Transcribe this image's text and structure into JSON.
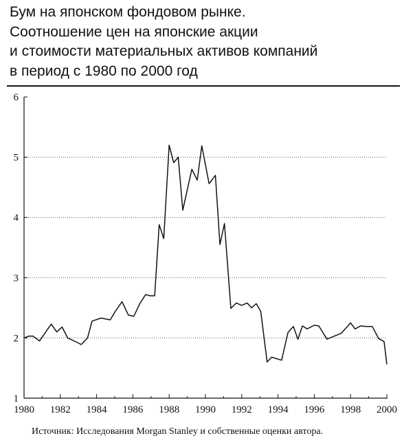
{
  "title_lines": [
    "Бум на японском фондовом рынке.",
    "Соотношение цен на японские акции",
    "и стоимости материальных активов компаний",
    "в период с 1980 по 2000 год"
  ],
  "source": "Источник: Исследования Morgan Stanley и собственные оценки автора.",
  "chart_data": {
    "type": "line",
    "title": "",
    "xlabel": "",
    "ylabel": "",
    "xlim": [
      1980,
      2000
    ],
    "ylim": [
      1,
      6
    ],
    "grid": "horizontal dotted",
    "xticks": [
      1980,
      1982,
      1984,
      1986,
      1988,
      1990,
      1992,
      1994,
      1996,
      1998,
      2000
    ],
    "xtick_labels": [
      "1980",
      "1982",
      "1984",
      "1986",
      "1988",
      "1990",
      "1992",
      "1994",
      "1996",
      "1998",
      "2000"
    ],
    "yticks": [
      1,
      2,
      3,
      4,
      5,
      6
    ],
    "ytick_labels": [
      "1",
      "2",
      "3",
      "4",
      "5",
      "6"
    ],
    "series": [
      {
        "x": [
          1980.0,
          1980.25,
          1980.5,
          1980.85,
          1981.2,
          1981.5,
          1981.8,
          1982.1,
          1982.4,
          1982.9,
          1983.15,
          1983.5,
          1983.75,
          1984.25,
          1984.75,
          1985.05,
          1985.4,
          1985.75,
          1986.05,
          1986.4,
          1986.7,
          1986.95,
          1987.2,
          1987.45,
          1987.7,
          1988.0,
          1988.25,
          1988.5,
          1988.75,
          1989.25,
          1989.55,
          1989.8,
          1990.2,
          1990.55,
          1990.8,
          1991.05,
          1991.4,
          1991.7,
          1992.0,
          1992.3,
          1992.55,
          1992.8,
          1993.05,
          1993.4,
          1993.65,
          1994.2,
          1994.55,
          1994.85,
          1995.1,
          1995.35,
          1995.6,
          1996.0,
          1996.25,
          1996.7,
          1997.5,
          1998.0,
          1998.25,
          1998.55,
          1998.85,
          1999.2,
          1999.55,
          1999.85,
          2000.0
        ],
        "y": [
          2.0,
          2.03,
          2.03,
          1.95,
          2.1,
          2.23,
          2.1,
          2.18,
          2.0,
          1.93,
          1.89,
          2.0,
          2.28,
          2.33,
          2.3,
          2.45,
          2.6,
          2.38,
          2.36,
          2.58,
          2.72,
          2.7,
          2.7,
          3.88,
          3.65,
          5.2,
          4.91,
          5.0,
          4.12,
          4.8,
          4.62,
          5.19,
          4.56,
          4.7,
          3.55,
          3.9,
          2.49,
          2.58,
          2.54,
          2.58,
          2.5,
          2.57,
          2.44,
          1.6,
          1.68,
          1.63,
          2.09,
          2.19,
          1.98,
          2.2,
          2.15,
          2.21,
          2.2,
          1.98,
          2.08,
          2.25,
          2.15,
          2.2,
          2.19,
          2.19,
          1.99,
          1.94,
          1.56
        ]
      }
    ]
  }
}
